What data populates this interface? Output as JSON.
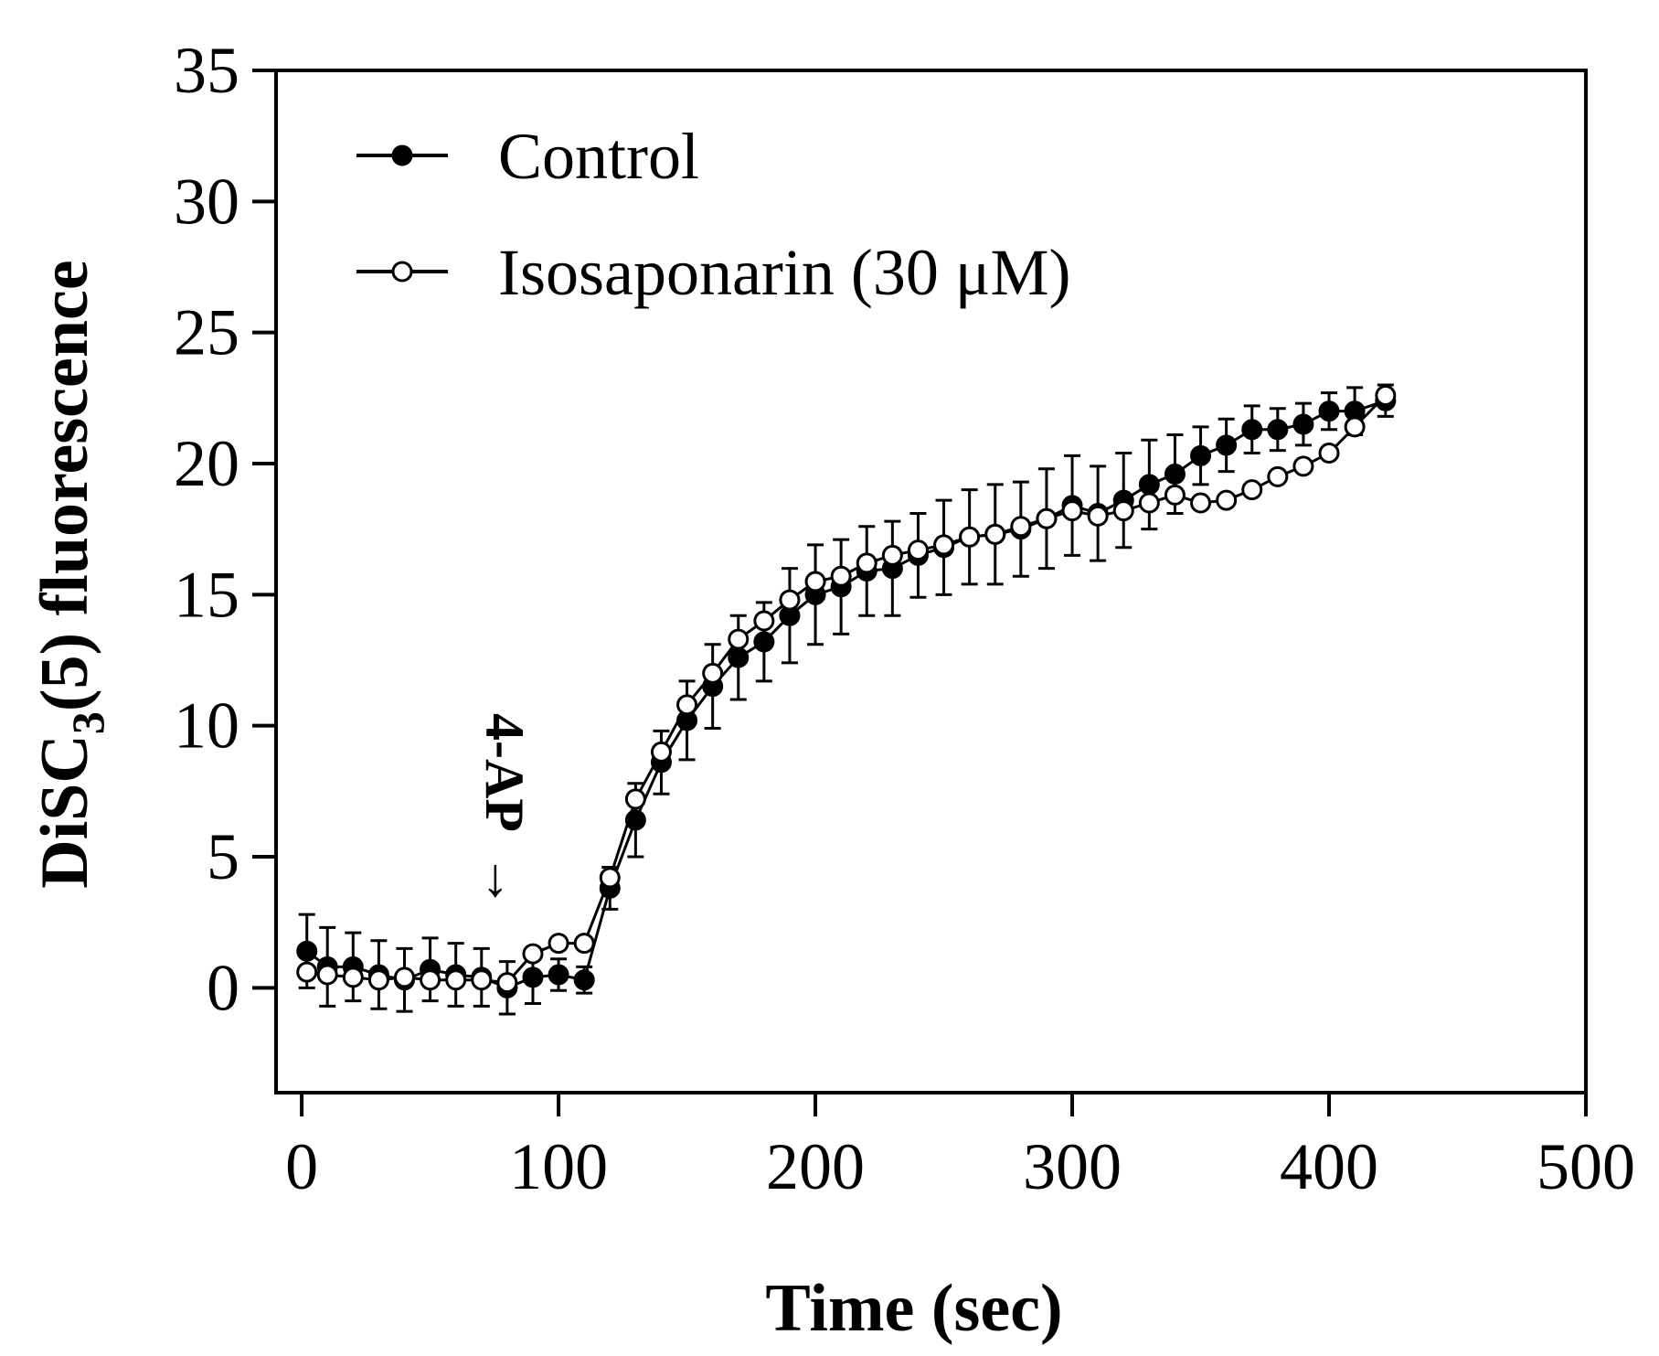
{
  "chart_data": {
    "type": "line",
    "xlabel": "Time (sec)",
    "ylabel_main": "DiSC",
    "ylabel_sub": "3",
    "ylabel_rest": "(5) fluorescence",
    "xlim": [
      -10,
      500
    ],
    "ylim": [
      -4,
      35
    ],
    "x_ticks": [
      0,
      100,
      200,
      300,
      400,
      500
    ],
    "y_ticks": [
      0,
      5,
      10,
      15,
      20,
      25,
      30,
      35
    ],
    "annotation": {
      "text": "4-AP",
      "arrow": "→",
      "x": 100,
      "y": 3
    },
    "legend_placement": "top-left",
    "series": [
      {
        "name": "Control",
        "marker": "filled-circle",
        "x": [
          2,
          10,
          20,
          30,
          40,
          50,
          60,
          70,
          80,
          90,
          100,
          110,
          120,
          130,
          140,
          150,
          160,
          170,
          180,
          190,
          200,
          210,
          220,
          230,
          240,
          250,
          260,
          270,
          280,
          290,
          300,
          310,
          320,
          330,
          340,
          350,
          360,
          370,
          380,
          390,
          400,
          410,
          422
        ],
        "y": [
          1.4,
          0.8,
          0.8,
          0.5,
          0.3,
          0.7,
          0.5,
          0.4,
          0.0,
          0.4,
          0.5,
          0.3,
          3.8,
          6.4,
          8.6,
          10.2,
          11.5,
          12.6,
          13.2,
          14.2,
          15.0,
          15.3,
          15.9,
          16.0,
          16.5,
          16.8,
          17.2,
          17.3,
          17.5,
          17.9,
          18.4,
          18.1,
          18.6,
          19.2,
          19.6,
          20.3,
          20.7,
          21.3,
          21.3,
          21.5,
          22.0,
          22.0,
          22.4
        ],
        "err": [
          1.4,
          1.5,
          1.3,
          1.3,
          1.2,
          1.2,
          1.2,
          1.1,
          1.0,
          1.0,
          0.6,
          0.5,
          0.8,
          1.4,
          1.2,
          1.5,
          1.6,
          1.6,
          1.5,
          1.8,
          1.9,
          1.8,
          1.7,
          1.8,
          1.6,
          1.8,
          1.8,
          1.9,
          1.8,
          1.9,
          1.9,
          1.8,
          1.8,
          1.7,
          1.5,
          1.1,
          1.0,
          0.9,
          0.8,
          0.8,
          0.7,
          0.9,
          0.6
        ]
      },
      {
        "name": "Isosaponarin (30 μM)",
        "marker": "open-circle",
        "x": [
          2,
          10,
          20,
          30,
          40,
          50,
          60,
          70,
          80,
          90,
          100,
          110,
          120,
          130,
          140,
          150,
          160,
          170,
          180,
          190,
          200,
          210,
          220,
          230,
          240,
          250,
          260,
          270,
          280,
          290,
          300,
          310,
          320,
          330,
          340,
          350,
          360,
          370,
          380,
          390,
          400,
          410,
          422
        ],
        "y": [
          0.6,
          0.5,
          0.4,
          0.3,
          0.4,
          0.3,
          0.3,
          0.3,
          0.2,
          1.3,
          1.7,
          1.7,
          4.2,
          7.2,
          9.0,
          10.8,
          12.0,
          13.3,
          14.0,
          14.8,
          15.5,
          15.7,
          16.2,
          16.5,
          16.7,
          16.9,
          17.2,
          17.3,
          17.6,
          17.9,
          18.2,
          18.0,
          18.2,
          18.5,
          18.8,
          18.5,
          18.6,
          19.0,
          19.5,
          19.9,
          20.4,
          21.4,
          22.6
        ]
      }
    ]
  }
}
